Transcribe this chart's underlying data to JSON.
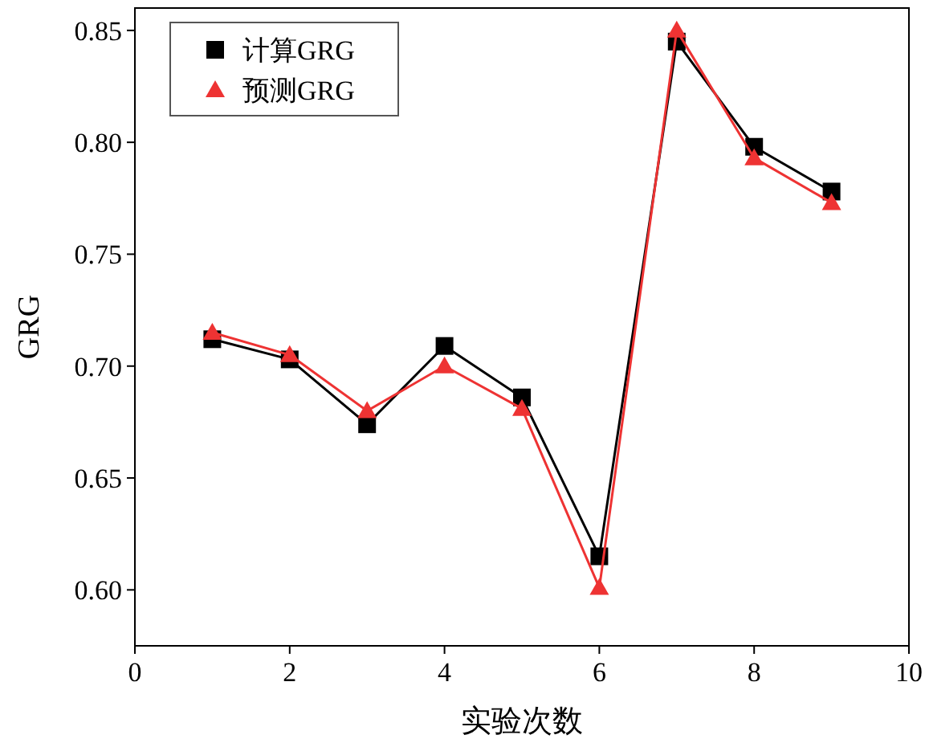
{
  "chart_data": {
    "type": "line",
    "xlabel": "实验次数",
    "ylabel": "GRG",
    "x": [
      1,
      2,
      3,
      4,
      5,
      6,
      7,
      8,
      9
    ],
    "series": [
      {
        "name": "计算GRG",
        "color": "#000000",
        "marker": "square",
        "values": [
          0.712,
          0.703,
          0.674,
          0.709,
          0.686,
          0.615,
          0.845,
          0.798,
          0.778
        ]
      },
      {
        "name": "预测GRG",
        "color": "#ee3333",
        "marker": "triangle",
        "values": [
          0.715,
          0.705,
          0.68,
          0.7,
          0.681,
          0.601,
          0.85,
          0.793,
          0.773
        ]
      }
    ],
    "xlim": [
      0,
      10
    ],
    "xticks": [
      0,
      2,
      4,
      6,
      8,
      10
    ],
    "ylim": [
      0.575,
      0.86
    ],
    "yticks": [
      {
        "value": 0.6,
        "label": "0.60"
      },
      {
        "value": 0.65,
        "label": "0.65"
      },
      {
        "value": 0.7,
        "label": "0.70"
      },
      {
        "value": 0.75,
        "label": "0.75"
      },
      {
        "value": 0.8,
        "label": "0.80"
      },
      {
        "value": 0.85,
        "label": "0.85"
      }
    ],
    "grid": false,
    "legend": "top left",
    "line_style": "solid"
  }
}
